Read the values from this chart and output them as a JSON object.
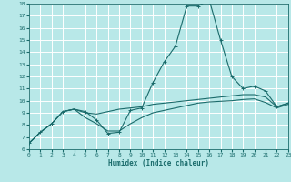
{
  "xlabel": "Humidex (Indice chaleur)",
  "background_color": "#b8e8e8",
  "grid_color": "#ffffff",
  "line_color": "#1a6b6b",
  "xlim": [
    0,
    23
  ],
  "ylim": [
    6,
    18
  ],
  "x_ticks": [
    0,
    1,
    2,
    3,
    4,
    5,
    6,
    7,
    8,
    9,
    10,
    11,
    12,
    13,
    14,
    15,
    16,
    17,
    18,
    19,
    20,
    21,
    22,
    23
  ],
  "y_ticks": [
    6,
    7,
    8,
    9,
    10,
    11,
    12,
    13,
    14,
    15,
    16,
    17,
    18
  ],
  "s1_x": [
    0,
    1,
    2,
    3,
    4,
    5,
    6,
    7,
    8,
    9,
    10,
    11,
    12,
    13,
    14,
    15,
    16,
    17,
    18,
    19,
    20,
    21,
    22,
    23
  ],
  "s1_y": [
    6.5,
    7.4,
    8.1,
    9.1,
    9.3,
    9.1,
    8.4,
    7.3,
    7.4,
    9.2,
    9.4,
    11.5,
    13.2,
    14.5,
    17.8,
    17.8,
    18.3,
    15.0,
    12.0,
    11.0,
    11.2,
    10.8,
    9.5,
    9.8
  ],
  "s2_x": [
    0,
    1,
    2,
    3,
    4,
    5,
    6,
    7,
    8,
    9,
    10,
    11,
    12,
    13,
    14,
    15,
    16,
    17,
    18,
    19,
    20,
    21,
    22,
    23
  ],
  "s2_y": [
    6.5,
    7.4,
    8.1,
    9.1,
    9.3,
    9.0,
    8.9,
    9.1,
    9.3,
    9.4,
    9.5,
    9.7,
    9.8,
    9.9,
    10.0,
    10.1,
    10.2,
    10.3,
    10.4,
    10.5,
    10.5,
    10.3,
    9.5,
    9.8
  ],
  "s3_x": [
    0,
    1,
    2,
    3,
    4,
    5,
    6,
    7,
    8,
    9,
    10,
    11,
    12,
    13,
    14,
    15,
    16,
    17,
    18,
    19,
    20,
    21,
    22,
    23
  ],
  "s3_y": [
    6.5,
    7.4,
    8.1,
    9.1,
    9.3,
    8.6,
    8.1,
    7.5,
    7.5,
    8.1,
    8.6,
    9.0,
    9.2,
    9.4,
    9.6,
    9.8,
    9.9,
    9.95,
    10.0,
    10.1,
    10.15,
    9.85,
    9.4,
    9.7
  ]
}
